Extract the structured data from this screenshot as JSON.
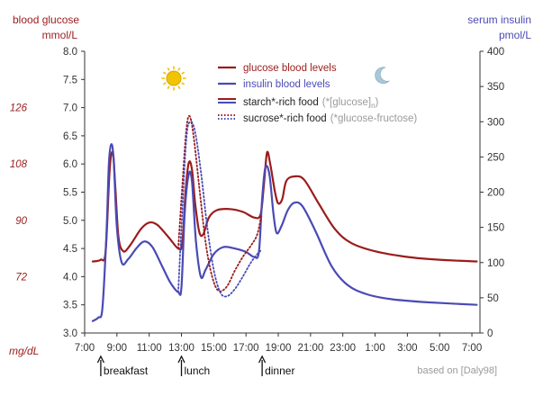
{
  "colors": {
    "glucose": "#9b1c1c",
    "insulin": "#4a4ab5",
    "left_axis": "#9b1c1c",
    "right_axis": "#4a4ab5",
    "axis": "#333333",
    "grid": "#c8c8c8",
    "note": "#9a9a9a",
    "sun": "#f2c300",
    "moon": "#a9c8d6"
  },
  "icons": {
    "sun": "sun-icon",
    "moon": "moon-icon"
  },
  "chart_data": {
    "type": "line",
    "title": "",
    "left_axis": {
      "title_line1": "blood glucose",
      "title_line2": "mmol/L",
      "ylim": [
        3.0,
        8.0
      ],
      "ticks": [
        "3.0",
        "3.5",
        "4.0",
        "4.5",
        "5.0",
        "5.5",
        "6.0",
        "6.5",
        "7.0",
        "7.5",
        "8.0"
      ],
      "mg_unit": "mg/dL",
      "mg_ticks": [
        {
          "label": "72",
          "mmol": 4.0
        },
        {
          "label": "90",
          "mmol": 5.0
        },
        {
          "label": "108",
          "mmol": 6.0
        },
        {
          "label": "126",
          "mmol": 7.0
        }
      ]
    },
    "right_axis": {
      "title_line1": "serum insulin",
      "title_line2": "pmol/L",
      "ylim": [
        0,
        400
      ],
      "ticks": [
        "0",
        "50",
        "100",
        "150",
        "200",
        "250",
        "300",
        "350",
        "400"
      ]
    },
    "x_axis": {
      "range_hours": [
        7,
        31.5
      ],
      "ticks": [
        {
          "label": "7:00",
          "h": 7
        },
        {
          "label": "9:00",
          "h": 9
        },
        {
          "label": "11:00",
          "h": 11
        },
        {
          "label": "13:00",
          "h": 13
        },
        {
          "label": "15:00",
          "h": 15
        },
        {
          "label": "17:00",
          "h": 17
        },
        {
          "label": "19:00",
          "h": 19
        },
        {
          "label": "21:00",
          "h": 21
        },
        {
          "label": "23:00",
          "h": 23
        },
        {
          "label": "1:00",
          "h": 25
        },
        {
          "label": "3:00",
          "h": 27
        },
        {
          "label": "5:00",
          "h": 29
        },
        {
          "label": "7:00",
          "h": 31
        }
      ]
    },
    "legend": [
      {
        "label": "glucose blood levels",
        "style": "solid-glucose"
      },
      {
        "label": "insulin blood levels",
        "style": "solid-insulin"
      },
      {
        "label": "starch*-rich food",
        "note": "(*[glucose]",
        "note_sub": "n",
        "note_end": ")",
        "style": "solid-both"
      },
      {
        "label": "sucrose*-rich food",
        "note": "(*glucose-fructose)",
        "style": "dotted-both"
      }
    ],
    "meals": [
      {
        "label": "breakfast",
        "h": 8.0
      },
      {
        "label": "lunch",
        "h": 13.0
      },
      {
        "label": "dinner",
        "h": 18.0
      }
    ],
    "source": "based on [Daly98]",
    "series": [
      {
        "name": "glucose blood levels",
        "axis": "left",
        "points": [
          [
            7.5,
            4.27
          ],
          [
            8.0,
            4.3
          ],
          [
            8.3,
            4.45
          ],
          [
            8.55,
            5.9
          ],
          [
            8.75,
            6.2
          ],
          [
            8.9,
            5.6
          ],
          [
            9.1,
            4.7
          ],
          [
            9.4,
            4.45
          ],
          [
            9.8,
            4.55
          ],
          [
            10.5,
            4.85
          ],
          [
            11.0,
            4.96
          ],
          [
            11.5,
            4.92
          ],
          [
            12.2,
            4.7
          ],
          [
            12.8,
            4.5
          ],
          [
            13.05,
            4.6
          ],
          [
            13.25,
            5.5
          ],
          [
            13.45,
            6.02
          ],
          [
            13.65,
            5.9
          ],
          [
            13.85,
            5.3
          ],
          [
            14.1,
            4.8
          ],
          [
            14.35,
            4.75
          ],
          [
            14.7,
            5.05
          ],
          [
            15.2,
            5.18
          ],
          [
            16.0,
            5.2
          ],
          [
            16.8,
            5.15
          ],
          [
            17.5,
            5.05
          ],
          [
            17.9,
            5.1
          ],
          [
            18.1,
            5.6
          ],
          [
            18.3,
            6.2
          ],
          [
            18.5,
            6.0
          ],
          [
            18.8,
            5.5
          ],
          [
            19.0,
            5.3
          ],
          [
            19.25,
            5.38
          ],
          [
            19.5,
            5.7
          ],
          [
            20.0,
            5.78
          ],
          [
            20.6,
            5.72
          ],
          [
            21.5,
            5.3
          ],
          [
            22.5,
            4.85
          ],
          [
            23.5,
            4.6
          ],
          [
            25.0,
            4.45
          ],
          [
            27.0,
            4.35
          ],
          [
            29.0,
            4.3
          ],
          [
            31.3,
            4.27
          ]
        ]
      },
      {
        "name": "insulin blood levels",
        "axis": "right",
        "points": [
          [
            7.5,
            17
          ],
          [
            7.85,
            22
          ],
          [
            8.1,
            35
          ],
          [
            8.35,
            140
          ],
          [
            8.5,
            240
          ],
          [
            8.65,
            268
          ],
          [
            8.8,
            245
          ],
          [
            9.0,
            150
          ],
          [
            9.3,
            100
          ],
          [
            9.7,
            105
          ],
          [
            10.2,
            120
          ],
          [
            10.7,
            130
          ],
          [
            11.2,
            122
          ],
          [
            11.8,
            95
          ],
          [
            12.3,
            72
          ],
          [
            12.8,
            58
          ],
          [
            13.0,
            65
          ],
          [
            13.2,
            170
          ],
          [
            13.45,
            225
          ],
          [
            13.65,
            215
          ],
          [
            13.9,
            130
          ],
          [
            14.2,
            80
          ],
          [
            14.5,
            90
          ],
          [
            15.0,
            112
          ],
          [
            15.6,
            122
          ],
          [
            16.3,
            120
          ],
          [
            17.0,
            115
          ],
          [
            17.5,
            108
          ],
          [
            17.8,
            115
          ],
          [
            18.0,
            190
          ],
          [
            18.2,
            235
          ],
          [
            18.45,
            225
          ],
          [
            18.7,
            170
          ],
          [
            18.9,
            142
          ],
          [
            19.2,
            152
          ],
          [
            19.6,
            175
          ],
          [
            20.0,
            185
          ],
          [
            20.5,
            180
          ],
          [
            21.3,
            145
          ],
          [
            22.3,
            95
          ],
          [
            23.3,
            68
          ],
          [
            24.5,
            55
          ],
          [
            26.0,
            48
          ],
          [
            28.0,
            44
          ],
          [
            31.3,
            40
          ]
        ]
      },
      {
        "name": "glucose blood levels",
        "variant": "sucrose-rich",
        "axis": "left",
        "points": [
          [
            12.8,
            4.5
          ],
          [
            13.05,
            5.6
          ],
          [
            13.3,
            6.6
          ],
          [
            13.5,
            6.85
          ],
          [
            13.75,
            6.5
          ],
          [
            14.1,
            5.6
          ],
          [
            14.5,
            4.6
          ],
          [
            14.9,
            4.0
          ],
          [
            15.3,
            3.75
          ],
          [
            15.8,
            3.82
          ],
          [
            16.3,
            4.1
          ],
          [
            16.8,
            4.35
          ],
          [
            17.3,
            4.55
          ],
          [
            17.7,
            4.75
          ],
          [
            17.95,
            5.1
          ]
        ]
      },
      {
        "name": "insulin blood levels",
        "variant": "sucrose-rich",
        "axis": "right",
        "points": [
          [
            12.8,
            58
          ],
          [
            13.0,
            150
          ],
          [
            13.3,
            275
          ],
          [
            13.55,
            300
          ],
          [
            13.85,
            285
          ],
          [
            14.2,
            230
          ],
          [
            14.6,
            150
          ],
          [
            15.0,
            90
          ],
          [
            15.4,
            58
          ],
          [
            15.8,
            52
          ],
          [
            16.3,
            62
          ],
          [
            16.8,
            80
          ],
          [
            17.3,
            100
          ],
          [
            17.7,
            112
          ],
          [
            17.95,
            118
          ]
        ]
      }
    ]
  }
}
